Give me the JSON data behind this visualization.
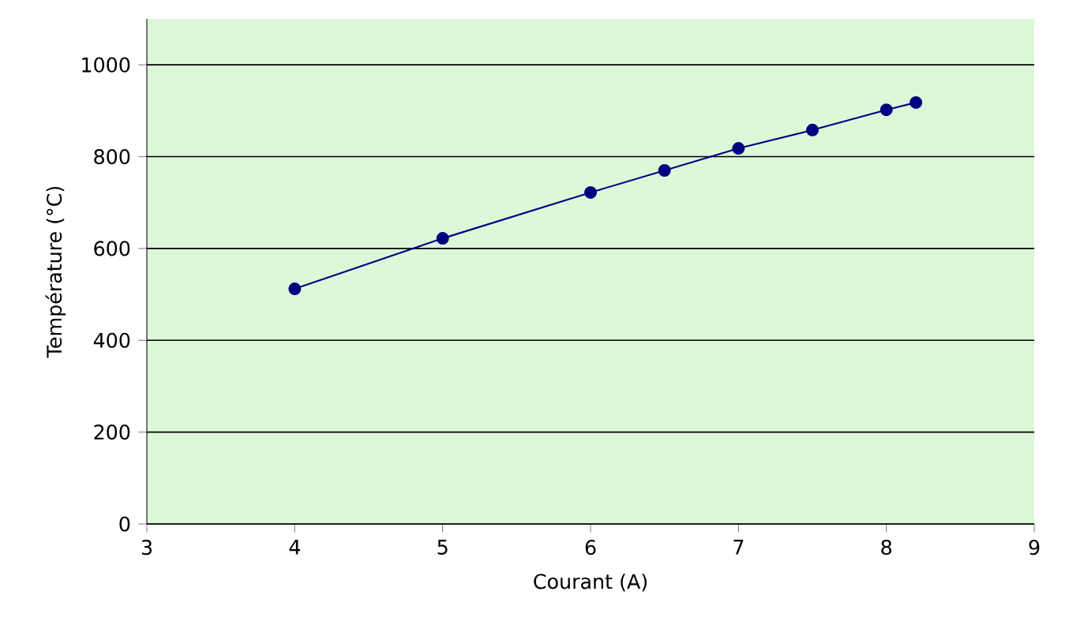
{
  "chart_data": {
    "type": "line",
    "xlabel": "Courant (A)",
    "ylabel": "Température (°C)",
    "x": [
      4,
      5,
      6,
      6.5,
      7,
      7.5,
      8,
      8.2
    ],
    "series": [
      {
        "color": "#000080",
        "values": [
          512,
          622,
          722,
          770,
          818,
          858,
          902,
          918
        ]
      }
    ],
    "xlim": [
      3,
      9
    ],
    "xticks": [
      3,
      4,
      5,
      6,
      7,
      8,
      9
    ],
    "ylim": [
      0,
      1100
    ],
    "yticks": [
      0,
      200,
      400,
      600,
      800,
      1000
    ],
    "grid": "y",
    "marker": "circle",
    "line_style": "solid"
  }
}
